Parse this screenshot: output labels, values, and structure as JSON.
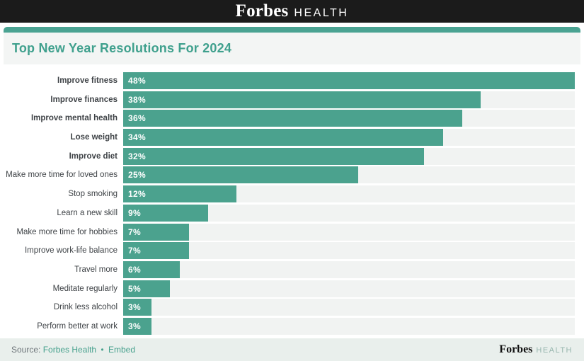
{
  "header": {
    "brand": "Forbes",
    "sub_brand": "HEALTH"
  },
  "chart_data": {
    "type": "bar",
    "orientation": "horizontal",
    "title": "Top New Year Resolutions For 2024",
    "categories": [
      "Improve fitness",
      "Improve finances",
      "Improve mental health",
      "Lose weight",
      "Improve diet",
      "Make more time for loved ones",
      "Stop smoking",
      "Learn a new skill",
      "Make more time for hobbies",
      "Improve work-life balance",
      "Travel more",
      "Meditate regularly",
      "Drink less alcohol",
      "Perform better at work"
    ],
    "values": [
      48,
      38,
      36,
      34,
      32,
      25,
      12,
      9,
      7,
      7,
      6,
      5,
      3,
      3
    ],
    "value_suffix": "%",
    "xlim": [
      0,
      48
    ],
    "bold_category_count": 5,
    "grid": false,
    "legend": false,
    "bar_color": "#4ba28e",
    "track_color": "#f1f3f2"
  },
  "footer": {
    "source_label": "Source:",
    "source_link": "Forbes Health",
    "separator": "•",
    "embed_link": "Embed",
    "brand": "Forbes",
    "sub_brand": "HEALTH"
  },
  "colors": {
    "accent_bar": "#4aa392",
    "title_text": "#3fa08d",
    "title_band_bg": "#f3f5f4",
    "topbar_bg": "#1b1b1b",
    "footer_bg": "#e9efec",
    "link": "#47a18d",
    "label_text": "#3f4347"
  }
}
